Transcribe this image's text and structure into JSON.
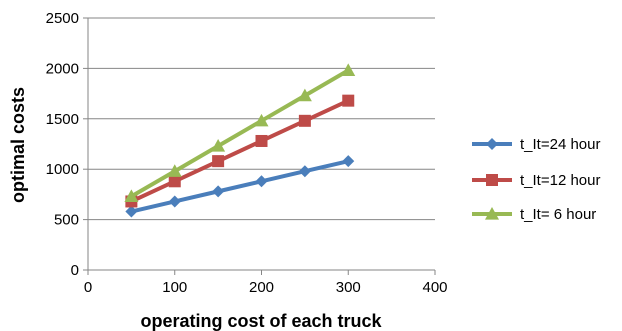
{
  "chart_data": {
    "type": "line",
    "title": "",
    "xlabel": "operating cost of each truck",
    "ylabel": "optimal costs",
    "xlim": [
      0,
      400
    ],
    "ylim": [
      0,
      2500
    ],
    "xticks": [
      0,
      100,
      200,
      300,
      400
    ],
    "yticks": [
      0,
      500,
      1000,
      1500,
      2000,
      2500
    ],
    "grid": "horizontal",
    "legend": "right",
    "x": [
      50,
      100,
      150,
      200,
      250,
      300
    ],
    "series": [
      {
        "name": "t_It=24 hour",
        "values": [
          580,
          680,
          780,
          880,
          980,
          1080
        ],
        "color": "#4a7ebb",
        "marker": "diamond"
      },
      {
        "name": "t_It=12 hour",
        "values": [
          680,
          880,
          1080,
          1280,
          1480,
          1680
        ],
        "color": "#be4b48",
        "marker": "square"
      },
      {
        "name": "t_It= 6 hour",
        "values": [
          730,
          980,
          1230,
          1480,
          1730,
          1980
        ],
        "color": "#98b954",
        "marker": "triangle"
      }
    ]
  }
}
